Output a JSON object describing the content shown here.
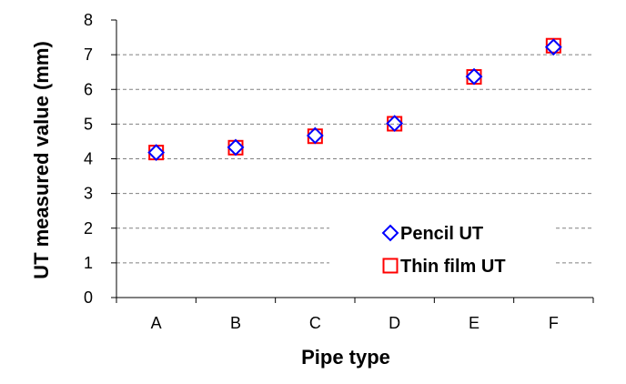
{
  "chart_data": {
    "type": "scatter",
    "title": "",
    "xlabel": "Pipe type",
    "ylabel": "UT measured value (mm)",
    "categories": [
      "A",
      "B",
      "C",
      "D",
      "E",
      "F"
    ],
    "ylim": [
      0,
      8
    ],
    "yticks": [
      0,
      1,
      2,
      3,
      4,
      5,
      6,
      7,
      8
    ],
    "grid": "horizontal dashed",
    "legend_position": "bottom-right",
    "series": [
      {
        "name": "Pencil UT",
        "marker": "diamond",
        "color": "#0000ff",
        "values": [
          4.18,
          4.33,
          4.67,
          5.02,
          6.37,
          7.22
        ]
      },
      {
        "name": "Thin film UT",
        "marker": "square",
        "color": "#ff0000",
        "values": [
          4.18,
          4.32,
          4.65,
          5.01,
          6.36,
          7.26
        ]
      }
    ]
  }
}
